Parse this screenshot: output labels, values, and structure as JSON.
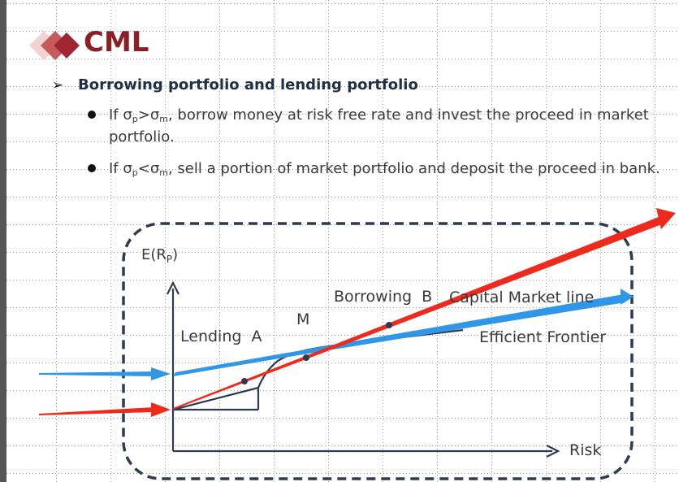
{
  "slide": {
    "title": "CML",
    "subheading": "Borrowing portfolio and lending portfolio",
    "bullets": [
      {
        "pre": "If σ",
        "sub1": "p",
        "mid": ">σ",
        "sub2": "m",
        "post": ", borrow money at risk free rate and invest the proceed in market portfolio."
      },
      {
        "pre": "If σ",
        "sub1": "p",
        "mid": "<σ",
        "sub2": "m",
        "post": ", sell a portion of market portfolio and deposit the proceed in bank."
      }
    ]
  },
  "diagram": {
    "y_axis_label_main": "E(R",
    "y_axis_label_sub": "P",
    "y_axis_label_close": ")",
    "x_axis_label": "Risk",
    "label_lending": "Lending  A",
    "label_m": "M",
    "label_borrowing": "Borrowing  B",
    "label_cml": "Capital Market line",
    "label_frontier": "Efficient Frontier"
  },
  "colors": {
    "title": "#8b1f24",
    "red_line": "#ee2a1c",
    "blue_line": "#2f96e8",
    "frontier": "#2d3b52",
    "dashed_border": "#2d3b52"
  }
}
